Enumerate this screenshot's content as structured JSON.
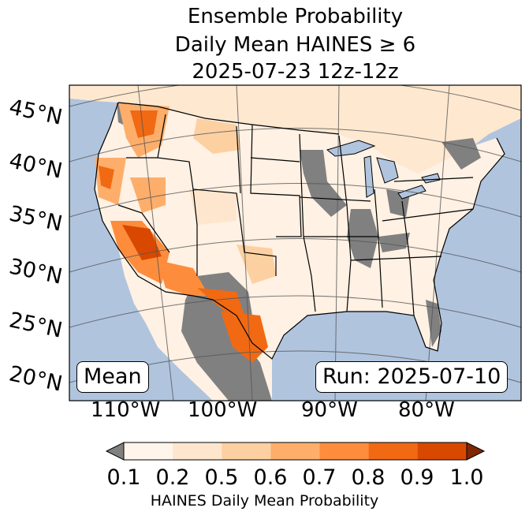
{
  "title": {
    "line1": "Ensemble Probability",
    "line2": "Daily Mean HAINES ≥ 6",
    "line3": "2025-07-23 12z-12z"
  },
  "lat_labels": [
    "45°N",
    "40°N",
    "35°N",
    "30°N",
    "25°N",
    "20°N"
  ],
  "lon_labels": [
    "110°W",
    "100°W",
    "90°W",
    "80°W"
  ],
  "mean_label": "Mean",
  "run_label": "Run: 2025-07-10",
  "colorbar": {
    "ticks": [
      "0.1",
      "0.2",
      "0.5",
      "0.6",
      "0.7",
      "0.8",
      "0.9",
      "1.0"
    ],
    "label": "HAINES Daily Mean Probability",
    "colors": [
      "#fff5eb",
      "#fee6ce",
      "#fdd0a2",
      "#fdae6b",
      "#fd8d3c",
      "#f16913",
      "#d94801"
    ],
    "under_color": "#808080",
    "over_color": "#7f2704"
  },
  "colors": {
    "ocean": "#b0c4de",
    "land": "#fff1e3",
    "missing": "#808080"
  }
}
